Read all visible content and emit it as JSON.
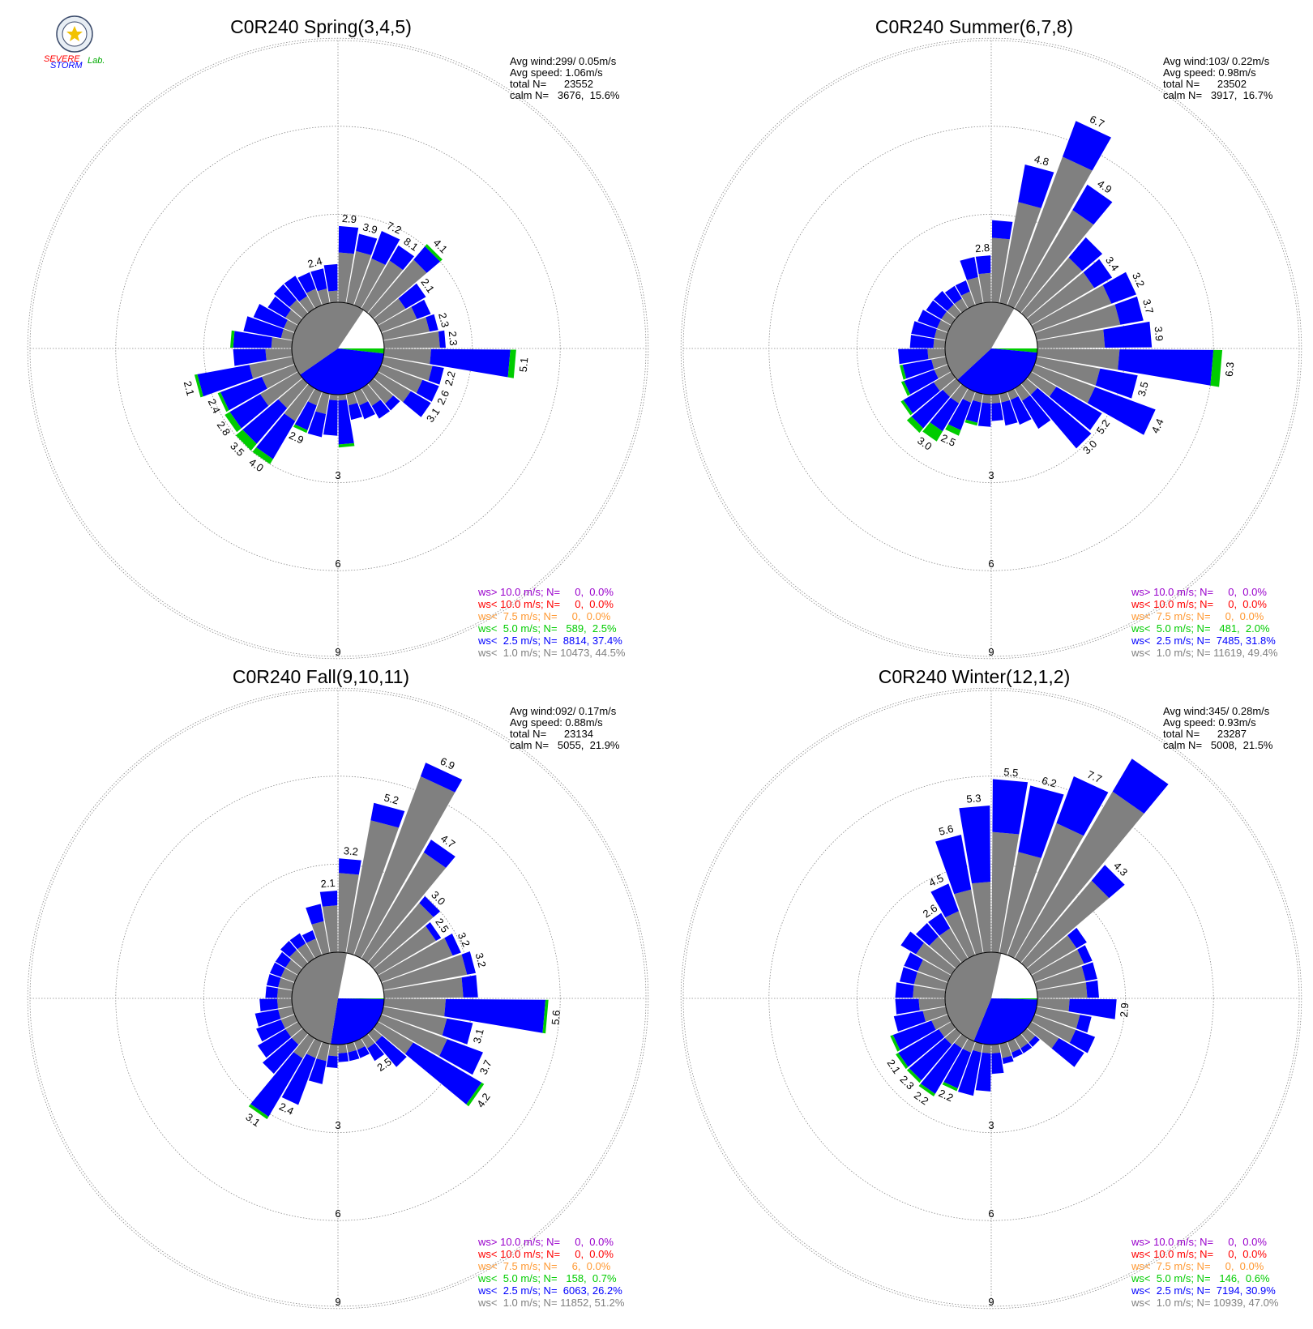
{
  "colors": {
    "ws_gt_10": "#9900cc",
    "ws_lt_10": "#ff0000",
    "ws_lt_7_5": "#ff9933",
    "ws_lt_5": "#00cc00",
    "ws_lt_2_5": "#0000ff",
    "ws_lt_1": "#808080"
  },
  "logo": {
    "icon": "severe-storm-lab-seal-icon",
    "lines": [
      "SEVERE",
      "STORM",
      "Lab."
    ]
  },
  "chart_data": [
    {
      "type": "wind-rose",
      "title": "C0R240 Spring(3,4,5)",
      "stats": [
        "Avg wind:299/ 0.05m/s",
        "Avg speed: 1.06m/s",
        "total N=      23552",
        "calm N=   3676,  15.6%"
      ],
      "radial_ticks": [
        "3",
        "6",
        "9"
      ],
      "calm_percent": 15.6,
      "directions_deg": [
        5,
        15,
        25,
        35,
        45,
        55,
        65,
        75,
        85,
        95,
        105,
        115,
        125,
        135,
        145,
        155,
        165,
        175,
        185,
        195,
        205,
        215,
        225,
        235,
        245,
        255,
        265,
        275,
        285,
        295,
        305,
        315,
        325,
        335,
        345,
        355
      ],
      "series": [
        {
          "name": "ws<  1.0 m/s",
          "values": [
            1.7,
            1.8,
            1.7,
            1.9,
            2.4,
            1.1,
            1.3,
            1.6,
            1.9,
            1.6,
            1.7,
            1.5,
            1.3,
            0.9,
            0.7,
            0.5,
            0.4,
            0.2,
            0.2,
            0.7,
            0.5,
            1.3,
            1.1,
            1.5,
            1.2,
            1.5,
            0.9,
            0.7,
            0.4,
            0.4,
            0.5,
            0.6,
            0.5,
            0.6,
            0.5,
            0.4
          ]
        },
        {
          "name": "ws<  2.5 m/s",
          "values": [
            0.9,
            0.6,
            1.0,
            0.6,
            0.6,
            0.8,
            0.5,
            0.3,
            0.2,
            2.7,
            0.4,
            0.6,
            0.8,
            0.3,
            0.5,
            0.5,
            0.5,
            1.5,
            1.2,
            0.8,
            0.9,
            1.5,
            1.6,
            1.2,
            1.5,
            1.8,
            1.1,
            1.3,
            1.3,
            1.1,
            0.7,
            0.7,
            0.8,
            0.6,
            0.7,
            0.9
          ]
        },
        {
          "name": "ws<  5.0 m/s",
          "values": [
            0.0,
            0.0,
            0.0,
            0.0,
            0.1,
            0.0,
            0.0,
            0.0,
            0.0,
            0.2,
            0.0,
            0.0,
            0.0,
            0.0,
            0.0,
            0.0,
            0.0,
            0.1,
            0.0,
            0.0,
            0.1,
            0.2,
            0.3,
            0.2,
            0.1,
            0.1,
            0.0,
            0.1,
            0.0,
            0.0,
            0.0,
            0.0,
            0.0,
            0.0,
            0.0,
            0.0
          ]
        }
      ],
      "bar_labels": [
        {
          "dir": 5,
          "text": "2.9"
        },
        {
          "dir": 15,
          "text": "3.9"
        },
        {
          "dir": 25,
          "text": "7.2"
        },
        {
          "dir": 35,
          "text": "8.1"
        },
        {
          "dir": 45,
          "text": "4.1"
        },
        {
          "dir": 55,
          "text": "2.1"
        },
        {
          "dir": 75,
          "text": "2.3"
        },
        {
          "dir": 85,
          "text": "2.3"
        },
        {
          "dir": 95,
          "text": "5.1"
        },
        {
          "dir": 105,
          "text": "2.2"
        },
        {
          "dir": 115,
          "text": "2.6"
        },
        {
          "dir": 125,
          "text": "3.1"
        },
        {
          "dir": 205,
          "text": "2.9"
        },
        {
          "dir": 215,
          "text": "4.0"
        },
        {
          "dir": 225,
          "text": "3.5"
        },
        {
          "dir": 235,
          "text": "2.8"
        },
        {
          "dir": 245,
          "text": "2.4"
        },
        {
          "dir": 255,
          "text": "2.1"
        },
        {
          "dir": 345,
          "text": "2.4"
        }
      ],
      "legend": [
        {
          "text": "ws> 10.0 m/s; N=     0,  0.0%",
          "color": "#9900cc"
        },
        {
          "text": "ws< 10.0 m/s; N=     0,  0.0%",
          "color": "#ff0000"
        },
        {
          "text": "ws<  7.5 m/s; N=     0,  0.0%",
          "color": "#ff9933"
        },
        {
          "text": "ws<  5.0 m/s; N=   589,  2.5%",
          "color": "#00cc00"
        },
        {
          "text": "ws<  2.5 m/s; N=  8814, 37.4%",
          "color": "#0000ff"
        },
        {
          "text": "ws<  1.0 m/s; N= 10473, 44.5%",
          "color": "#808080"
        }
      ]
    },
    {
      "type": "wind-rose",
      "title": "C0R240 Summer(6,7,8)",
      "stats": [
        "Avg wind:103/ 0.22m/s",
        "Avg speed: 0.98m/s",
        "total N=      23502",
        "calm N=   3917,  16.7%"
      ],
      "radial_ticks": [
        "3",
        "6",
        "9"
      ],
      "calm_percent": 16.7,
      "directions_deg": [
        5,
        15,
        25,
        35,
        45,
        55,
        65,
        75,
        85,
        95,
        105,
        115,
        125,
        135,
        145,
        155,
        165,
        175,
        185,
        195,
        205,
        215,
        225,
        235,
        245,
        255,
        265,
        275,
        285,
        295,
        305,
        315,
        325,
        335,
        345,
        355
      ],
      "series": [
        {
          "name": "ws<  1.0 m/s",
          "values": [
            2.2,
            3.5,
            5.4,
            3.9,
            2.5,
            2.5,
            2.8,
            2.9,
            2.3,
            2.8,
            2.2,
            2.2,
            1.0,
            0.5,
            0.5,
            0.3,
            0.3,
            0.3,
            0.3,
            0.3,
            0.4,
            0.6,
            0.6,
            0.7,
            0.5,
            0.5,
            0.6,
            0.4,
            0.4,
            0.4,
            0.4,
            0.4,
            0.4,
            0.5,
            0.9,
            1.0
          ]
        },
        {
          "name": "ws<  2.5 m/s",
          "values": [
            0.6,
            1.3,
            1.3,
            1.0,
            0.9,
            0.7,
            0.9,
            0.8,
            1.6,
            3.2,
            1.3,
            2.2,
            1.8,
            2.4,
            1.1,
            0.9,
            0.8,
            0.6,
            0.8,
            0.7,
            1.0,
            1.1,
            1.4,
            1.2,
            1.1,
            1.0,
            1.0,
            0.8,
            0.8,
            0.7,
            0.6,
            0.6,
            0.5,
            0.4,
            0.7,
            0.6
          ]
        },
        {
          "name": "ws<  5.0 m/s",
          "values": [
            0.0,
            0.0,
            0.0,
            0.0,
            0.0,
            0.0,
            0.0,
            0.0,
            0.0,
            0.3,
            0.0,
            0.0,
            0.0,
            0.0,
            0.0,
            0.0,
            0.0,
            0.0,
            0.0,
            0.1,
            0.2,
            0.4,
            0.2,
            0.1,
            0.1,
            0.1,
            0.0,
            0.0,
            0.0,
            0.0,
            0.0,
            0.0,
            0.0,
            0.0,
            0.0,
            0.0
          ]
        }
      ],
      "bar_labels": [
        {
          "dir": 15,
          "text": "4.8"
        },
        {
          "dir": 25,
          "text": "6.7"
        },
        {
          "dir": 35,
          "text": "4.9"
        },
        {
          "dir": 55,
          "text": "3.4"
        },
        {
          "dir": 65,
          "text": "3.2"
        },
        {
          "dir": 75,
          "text": "3.7"
        },
        {
          "dir": 85,
          "text": "3.9"
        },
        {
          "dir": 95,
          "text": "6.3"
        },
        {
          "dir": 105,
          "text": "3.5"
        },
        {
          "dir": 115,
          "text": "4.4"
        },
        {
          "dir": 125,
          "text": "5.2"
        },
        {
          "dir": 135,
          "text": "3.0"
        },
        {
          "dir": 205,
          "text": "2.5"
        },
        {
          "dir": 215,
          "text": "3.0"
        },
        {
          "dir": 355,
          "text": "2.8"
        }
      ],
      "legend": [
        {
          "text": "ws> 10.0 m/s; N=     0,  0.0%",
          "color": "#9900cc"
        },
        {
          "text": "ws< 10.0 m/s; N=     0,  0.0%",
          "color": "#ff0000"
        },
        {
          "text": "ws<  7.5 m/s; N=     0,  0.0%",
          "color": "#ff9933"
        },
        {
          "text": "ws<  5.0 m/s; N=   481,  2.0%",
          "color": "#00cc00"
        },
        {
          "text": "ws<  2.5 m/s; N=  7485, 31.8%",
          "color": "#0000ff"
        },
        {
          "text": "ws<  1.0 m/s; N= 11619, 49.4%",
          "color": "#808080"
        }
      ]
    },
    {
      "type": "wind-rose",
      "title": "C0R240 Fall(9,10,11)",
      "stats": [
        "Avg wind:092/ 0.17m/s",
        "Avg speed: 0.88m/s",
        "total N=      23134",
        "calm N=   5055,  21.9%"
      ],
      "radial_ticks": [
        "3",
        "6",
        "9"
      ],
      "calm_percent": 21.9,
      "directions_deg": [
        5,
        15,
        25,
        35,
        45,
        55,
        65,
        75,
        85,
        95,
        105,
        115,
        125,
        135,
        145,
        155,
        165,
        175,
        185,
        195,
        205,
        215,
        225,
        235,
        245,
        255,
        265,
        275,
        285,
        295,
        305,
        315,
        325,
        335,
        345,
        355
      ],
      "series": [
        {
          "name": "ws<  1.0 m/s",
          "values": [
            2.7,
            4.6,
            6.5,
            4.2,
            2.7,
            2.3,
            2.6,
            2.9,
            2.7,
            2.1,
            2.2,
            2.4,
            1.4,
            0.4,
            0.4,
            0.3,
            0.3,
            0.3,
            0.4,
            0.6,
            0.6,
            0.8,
            0.5,
            0.5,
            0.5,
            0.5,
            0.5,
            0.5,
            0.5,
            0.5,
            0.5,
            0.6,
            0.6,
            0.6,
            1.1,
            1.6
          ]
        },
        {
          "name": "ws<  2.5 m/s",
          "values": [
            0.5,
            0.6,
            0.5,
            0.5,
            0.3,
            0.2,
            0.3,
            0.3,
            0.5,
            3.4,
            0.9,
            1.3,
            2.7,
            1.1,
            0.5,
            0.3,
            0.3,
            0.3,
            0.4,
            0.8,
            1.7,
            2.3,
            1.3,
            1.1,
            0.9,
            0.8,
            0.6,
            0.4,
            0.4,
            0.4,
            0.4,
            0.4,
            0.4,
            0.3,
            0.6,
            0.5
          ]
        },
        {
          "name": "ws<  5.0 m/s",
          "values": [
            0.0,
            0.0,
            0.0,
            0.0,
            0.0,
            0.0,
            0.0,
            0.0,
            0.0,
            0.1,
            0.0,
            0.0,
            0.1,
            0.0,
            0.0,
            0.0,
            0.0,
            0.0,
            0.0,
            0.0,
            0.0,
            0.1,
            0.0,
            0.0,
            0.0,
            0.0,
            0.0,
            0.0,
            0.0,
            0.0,
            0.0,
            0.0,
            0.0,
            0.0,
            0.0,
            0.0
          ]
        }
      ],
      "bar_labels": [
        {
          "dir": 5,
          "text": "3.2"
        },
        {
          "dir": 15,
          "text": "5.2"
        },
        {
          "dir": 25,
          "text": "6.9"
        },
        {
          "dir": 35,
          "text": "4.7"
        },
        {
          "dir": 45,
          "text": "3.0"
        },
        {
          "dir": 55,
          "text": "2.5"
        },
        {
          "dir": 65,
          "text": "3.2"
        },
        {
          "dir": 75,
          "text": "3.2"
        },
        {
          "dir": 95,
          "text": "5.6"
        },
        {
          "dir": 105,
          "text": "3.1"
        },
        {
          "dir": 115,
          "text": "3.7"
        },
        {
          "dir": 125,
          "text": "4.2"
        },
        {
          "dir": 145,
          "text": "2.5"
        },
        {
          "dir": 205,
          "text": "2.4"
        },
        {
          "dir": 215,
          "text": "3.1"
        },
        {
          "dir": 355,
          "text": "2.1"
        }
      ],
      "legend": [
        {
          "text": "ws> 10.0 m/s; N=     0,  0.0%",
          "color": "#9900cc"
        },
        {
          "text": "ws< 10.0 m/s; N=     0,  0.0%",
          "color": "#ff0000"
        },
        {
          "text": "ws<  7.5 m/s; N=     6,  0.0%",
          "color": "#ff9933"
        },
        {
          "text": "ws<  5.0 m/s; N=   158,  0.7%",
          "color": "#00cc00"
        },
        {
          "text": "ws<  2.5 m/s; N=  6063, 26.2%",
          "color": "#0000ff"
        },
        {
          "text": "ws<  1.0 m/s; N= 11852, 51.2%",
          "color": "#808080"
        }
      ]
    },
    {
      "type": "wind-rose",
      "title": "C0R240 Winter(12,1,2)",
      "stats": [
        "Avg wind:345/ 0.28m/s",
        "Avg speed: 0.93m/s",
        "total N=      23287",
        "calm N=   5008,  21.5%"
      ],
      "radial_ticks": [
        "3",
        "6",
        "9"
      ],
      "calm_percent": 21.5,
      "directions_deg": [
        5,
        15,
        25,
        35,
        45,
        55,
        65,
        75,
        85,
        95,
        105,
        115,
        125,
        135,
        145,
        155,
        165,
        175,
        185,
        195,
        205,
        215,
        225,
        235,
        245,
        255,
        265,
        275,
        285,
        295,
        305,
        315,
        325,
        335,
        345,
        355
      ],
      "series": [
        {
          "name": "ws<  1.0 m/s",
          "values": [
            4.1,
            3.5,
            4.8,
            6.6,
            3.7,
            1.8,
            1.8,
            1.7,
            1.7,
            1.1,
            1.5,
            1.5,
            1.1,
            0.4,
            0.4,
            0.4,
            0.5,
            0.3,
            0.3,
            0.3,
            0.4,
            0.4,
            0.5,
            0.5,
            0.6,
            0.8,
            0.9,
            1.1,
            1.1,
            1.1,
            1.4,
            1.2,
            1.2,
            1.6,
            2.2,
            2.4
          ]
        },
        {
          "name": "ws<  2.5 m/s",
          "values": [
            1.8,
            2.3,
            1.7,
            1.3,
            0.7,
            0.4,
            0.3,
            0.4,
            0.4,
            1.6,
            0.4,
            0.7,
            1.0,
            0.2,
            0.2,
            0.2,
            0.2,
            0.7,
            1.3,
            1.5,
            1.3,
            1.8,
            1.6,
            1.6,
            1.4,
            1.0,
            0.8,
            0.6,
            0.5,
            0.5,
            0.6,
            0.6,
            0.6,
            1.0,
            1.9,
            2.6
          ]
        },
        {
          "name": "ws<  5.0 m/s",
          "values": [
            0.0,
            0.0,
            0.0,
            0.0,
            0.0,
            0.0,
            0.0,
            0.0,
            0.0,
            0.0,
            0.0,
            0.0,
            0.0,
            0.0,
            0.0,
            0.0,
            0.0,
            0.0,
            0.0,
            0.0,
            0.1,
            0.1,
            0.1,
            0.1,
            0.1,
            0.0,
            0.0,
            0.0,
            0.0,
            0.0,
            0.0,
            0.0,
            0.0,
            0.0,
            0.0,
            0.0
          ]
        }
      ],
      "bar_labels": [
        {
          "dir": 5,
          "text": "5.5"
        },
        {
          "dir": 15,
          "text": "6.2"
        },
        {
          "dir": 25,
          "text": "7.7"
        },
        {
          "dir": 45,
          "text": "4.3"
        },
        {
          "dir": 95,
          "text": "2.9"
        },
        {
          "dir": 205,
          "text": "2.2"
        },
        {
          "dir": 215,
          "text": "2.2"
        },
        {
          "dir": 225,
          "text": "2.3"
        },
        {
          "dir": 235,
          "text": "2.1"
        },
        {
          "dir": 325,
          "text": "2.6"
        },
        {
          "dir": 335,
          "text": "4.5"
        },
        {
          "dir": 345,
          "text": "5.6"
        },
        {
          "dir": 355,
          "text": "5.3"
        }
      ],
      "legend": [
        {
          "text": "ws> 10.0 m/s; N=     0,  0.0%",
          "color": "#9900cc"
        },
        {
          "text": "ws< 10.0 m/s; N=     0,  0.0%",
          "color": "#ff0000"
        },
        {
          "text": "ws<  7.5 m/s; N=     0,  0.0%",
          "color": "#ff9933"
        },
        {
          "text": "ws<  5.0 m/s; N=   146,  0.6%",
          "color": "#00cc00"
        },
        {
          "text": "ws<  2.5 m/s; N=  7194, 30.9%",
          "color": "#0000ff"
        },
        {
          "text": "ws<  1.0 m/s; N= 10939, 47.0%",
          "color": "#808080"
        }
      ]
    }
  ]
}
